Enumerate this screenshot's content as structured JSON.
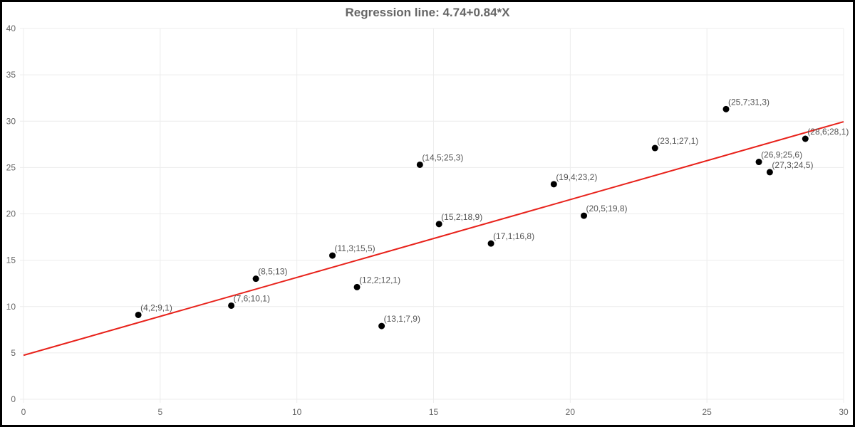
{
  "chart_data": {
    "type": "scatter",
    "title": "Regression line:  4.74+0.84*X",
    "xlabel": "",
    "ylabel": "",
    "xlim": [
      0,
      30
    ],
    "ylim": [
      0,
      40
    ],
    "x_ticks": [
      0,
      5,
      10,
      15,
      20,
      25,
      30
    ],
    "y_ticks": [
      0,
      5,
      10,
      15,
      20,
      25,
      30,
      35,
      40
    ],
    "grid": true,
    "legend": "none",
    "colors": {
      "points": "#000000",
      "regression_line": "#e8221b",
      "grid": "#ececec",
      "text": "#666666"
    },
    "regression": {
      "intercept": 4.74,
      "slope": 0.84,
      "x_range": [
        0,
        30
      ]
    },
    "points": [
      {
        "x": 4.2,
        "y": 9.1,
        "label": "(4,2;9,1)"
      },
      {
        "x": 7.6,
        "y": 10.1,
        "label": "(7,6;10,1)"
      },
      {
        "x": 8.5,
        "y": 13,
        "label": "(8,5;13)"
      },
      {
        "x": 11.3,
        "y": 15.5,
        "label": "(11,3;15,5)"
      },
      {
        "x": 12.2,
        "y": 12.1,
        "label": "(12,2;12,1)"
      },
      {
        "x": 13.1,
        "y": 7.9,
        "label": "(13,1;7,9)"
      },
      {
        "x": 14.5,
        "y": 25.3,
        "label": "(14,5;25,3)"
      },
      {
        "x": 15.2,
        "y": 18.9,
        "label": "(15,2;18,9)"
      },
      {
        "x": 17.1,
        "y": 16.8,
        "label": "(17,1;16,8)"
      },
      {
        "x": 19.4,
        "y": 23.2,
        "label": "(19,4;23,2)"
      },
      {
        "x": 20.5,
        "y": 19.8,
        "label": "(20,5;19,8)"
      },
      {
        "x": 23.1,
        "y": 27.1,
        "label": "(23,1;27,1)"
      },
      {
        "x": 25.7,
        "y": 31.3,
        "label": "(25,7;31,3)"
      },
      {
        "x": 26.9,
        "y": 25.6,
        "label": "(26,9;25,6)"
      },
      {
        "x": 27.3,
        "y": 24.5,
        "label": "(27,3;24,5)"
      },
      {
        "x": 28.6,
        "y": 28.1,
        "label": "(28,6;28,1)"
      }
    ]
  }
}
